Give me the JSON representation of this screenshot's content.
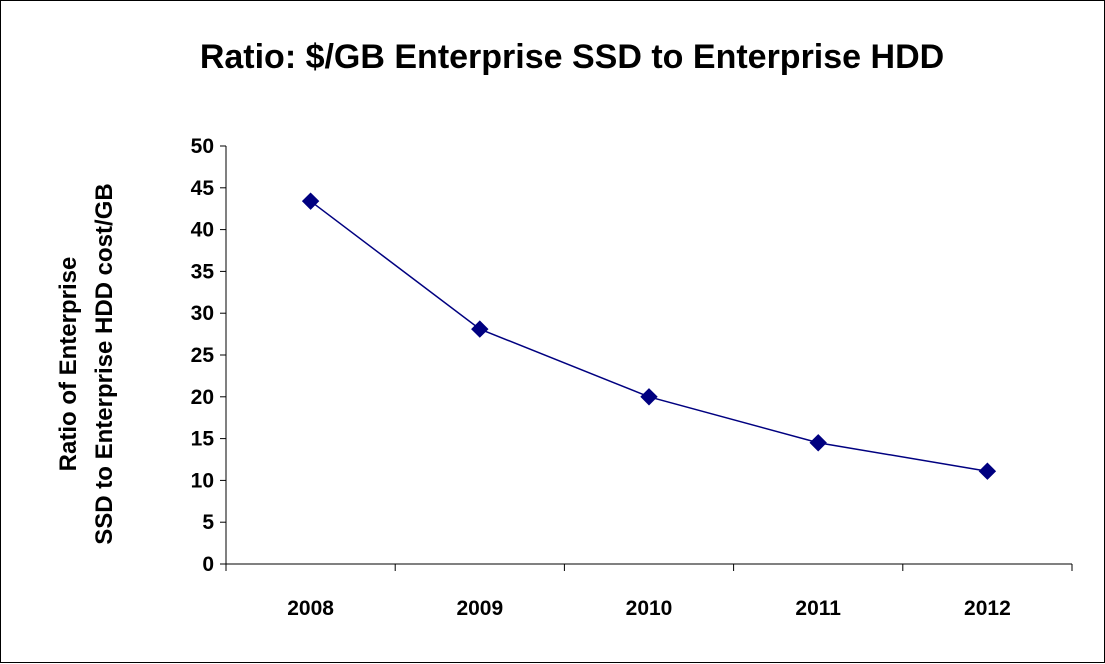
{
  "chart_data": {
    "type": "line",
    "title": "Ratio:  $/GB Enterprise SSD to Enterprise HDD",
    "xlabel": "",
    "ylabel_lines": [
      "Ratio of Enterprise",
      "SSD to Enterprise HDD cost/GB"
    ],
    "categories": [
      "2008",
      "2009",
      "2010",
      "2011",
      "2012"
    ],
    "series": [
      {
        "values": [
          43.4,
          28.1,
          20.0,
          14.5,
          11.1
        ],
        "color": "#000080",
        "marker": "diamond"
      }
    ],
    "ylim": [
      0,
      50
    ],
    "yticks": [
      0,
      5,
      10,
      15,
      20,
      25,
      30,
      35,
      40,
      45,
      50
    ],
    "grid": false,
    "legend": "none"
  }
}
